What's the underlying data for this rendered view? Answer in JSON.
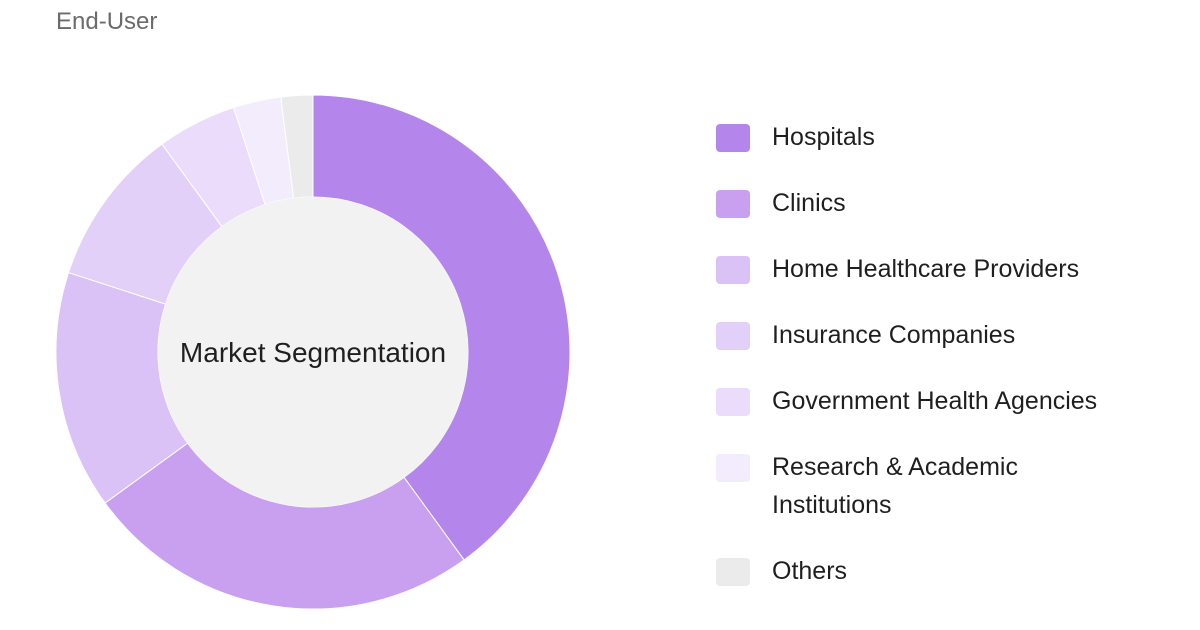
{
  "subtitle": "End-User",
  "chart_data": {
    "type": "pie",
    "title": "",
    "center_label": "Market Segmentation",
    "categories": [
      "Hospitals",
      "Clinics",
      "Home Healthcare Providers",
      "Insurance Companies",
      "Government Health Agencies",
      "Research & Academic Institutions",
      "Others"
    ],
    "values": [
      40,
      25,
      15,
      10,
      5,
      3,
      2
    ],
    "colors": [
      "#b486ec",
      "#c9a0f0",
      "#dac2f7",
      "#e3d0f8",
      "#eadcfa",
      "#f3ecfd",
      "#ebebeb"
    ],
    "legend": "right"
  }
}
